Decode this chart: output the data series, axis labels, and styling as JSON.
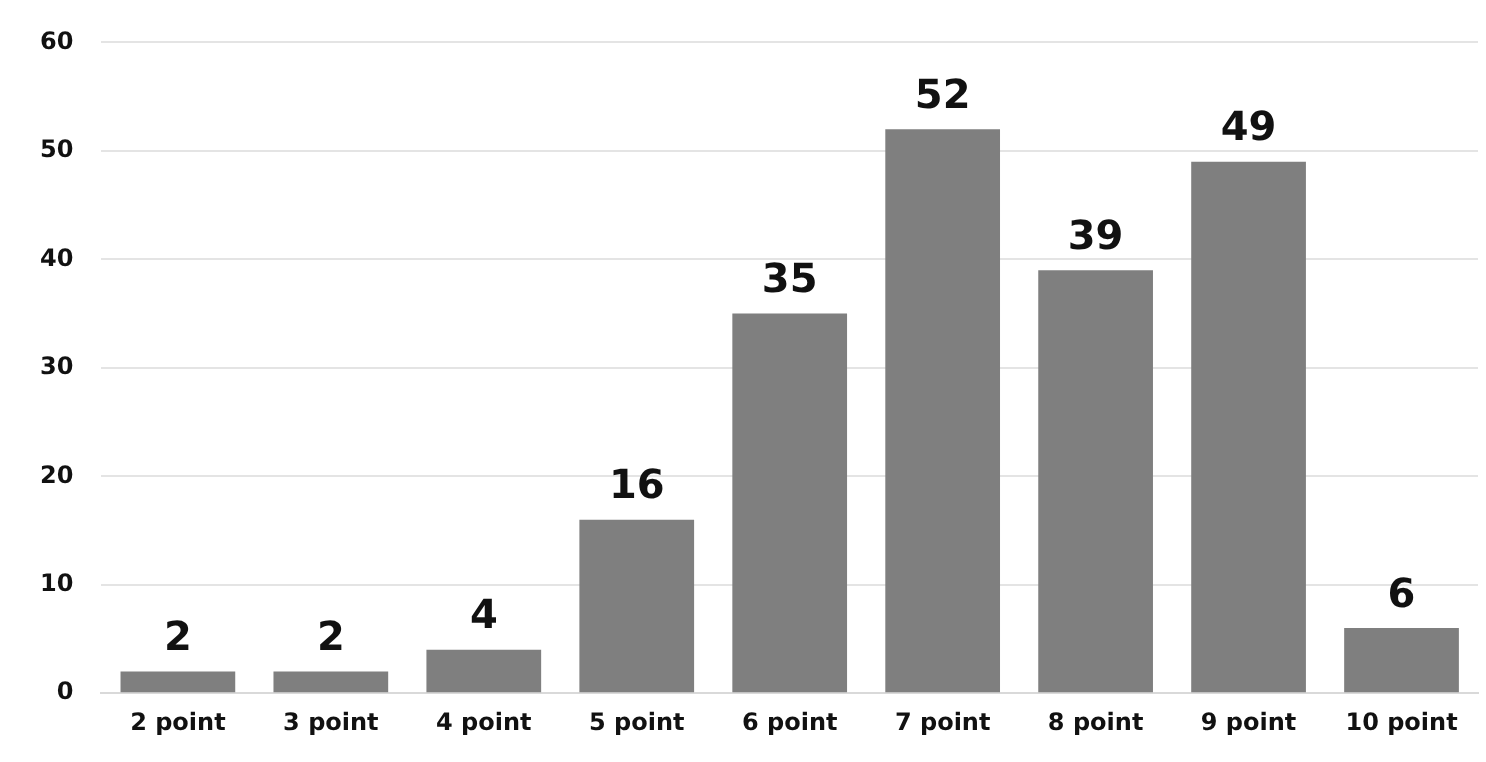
{
  "chart_data": {
    "type": "bar",
    "categories": [
      "2 point",
      "3 point",
      "4 point",
      "5 point",
      "6 point",
      "7 point",
      "8 point",
      "9 point",
      "10 point"
    ],
    "values": [
      2,
      2,
      4,
      16,
      35,
      52,
      39,
      49,
      6
    ],
    "color": "#7f7f7f",
    "ylim": [
      0,
      60
    ],
    "yticks": [
      0,
      10,
      20,
      30,
      40,
      50,
      60
    ],
    "grid": "y",
    "data_labels": true,
    "legend": false
  }
}
